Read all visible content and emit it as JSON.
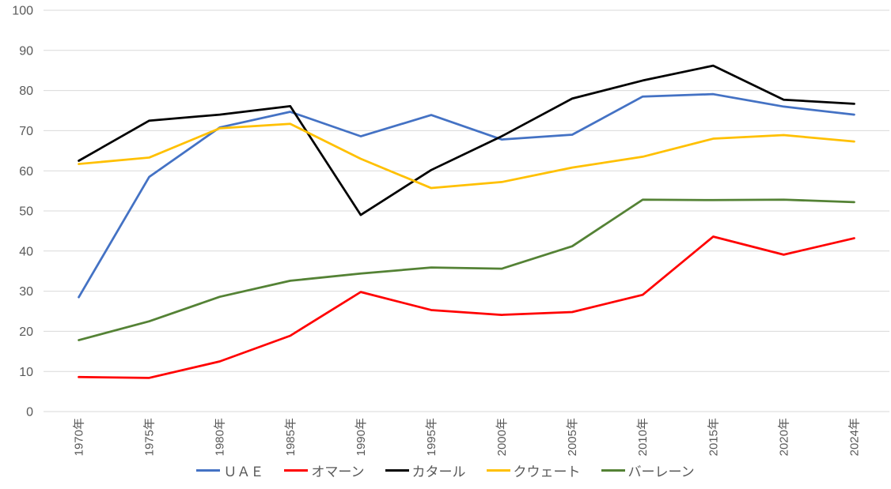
{
  "chart_data": {
    "type": "line",
    "title": "",
    "xlabel": "",
    "ylabel": "",
    "ylim": [
      0,
      100
    ],
    "ytick_step": 10,
    "grid": true,
    "legend_position": "bottom",
    "gridline_color": "#d9d9d9",
    "axis_label_color": "#595959",
    "background_color": "#ffffff",
    "yticks": [
      "0",
      "10",
      "20",
      "30",
      "40",
      "50",
      "60",
      "70",
      "80",
      "90",
      "100"
    ],
    "categories": [
      "1970年",
      "1975年",
      "1980年",
      "1985年",
      "1990年",
      "1995年",
      "2000年",
      "2005年",
      "2010年",
      "2015年",
      "2020年",
      "2024年"
    ],
    "series": [
      {
        "name": "ＵＡＥ",
        "color": "#4472c4",
        "values": [
          28.5,
          58.5,
          70.8,
          74.7,
          68.6,
          73.9,
          67.8,
          69.0,
          78.5,
          79.1,
          76.0,
          74.0
        ]
      },
      {
        "name": "オマーン",
        "color": "#ff0000",
        "values": [
          8.6,
          8.4,
          12.5,
          18.9,
          29.8,
          25.3,
          24.1,
          24.8,
          29.1,
          43.6,
          39.1,
          43.2
        ]
      },
      {
        "name": "カタール",
        "color": "#000000",
        "values": [
          62.5,
          72.5,
          74.0,
          76.1,
          49.0,
          60.2,
          68.6,
          78.0,
          82.5,
          86.2,
          77.7,
          76.7
        ]
      },
      {
        "name": "クウェート",
        "color": "#ffc000",
        "values": [
          61.7,
          63.3,
          70.6,
          71.7,
          63.0,
          55.7,
          57.2,
          60.8,
          63.5,
          68.0,
          68.9,
          67.3
        ]
      },
      {
        "name": "バーレーン",
        "color": "#548235",
        "values": [
          17.8,
          22.5,
          28.6,
          32.6,
          34.4,
          35.9,
          35.6,
          41.2,
          52.8,
          52.7,
          52.8,
          52.2
        ]
      }
    ]
  }
}
